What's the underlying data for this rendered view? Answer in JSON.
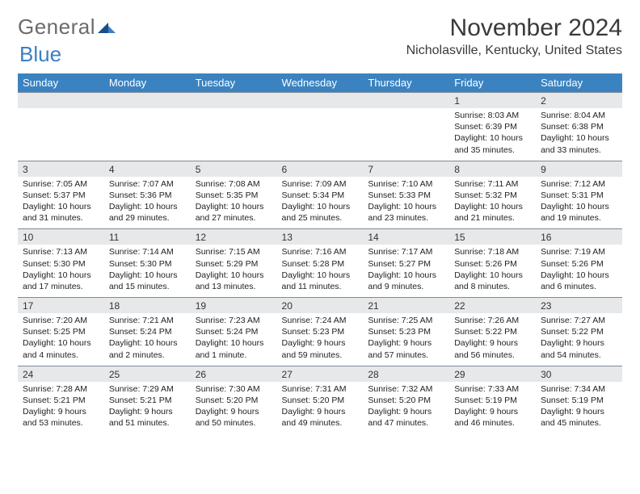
{
  "brand": {
    "part1": "General",
    "part2": "Blue"
  },
  "title": "November 2024",
  "location": "Nicholasville, Kentucky, United States",
  "colors": {
    "header_bg": "#3b83c0",
    "header_text": "#ffffff",
    "numrow_bg": "#e7e8e9",
    "numrow_border": "#7f8b97",
    "body_text": "#222222",
    "logo_gray": "#6b6b6b",
    "logo_blue": "#3b7fc4"
  },
  "weekdays": [
    "Sunday",
    "Monday",
    "Tuesday",
    "Wednesday",
    "Thursday",
    "Friday",
    "Saturday"
  ],
  "weeks": [
    [
      null,
      null,
      null,
      null,
      null,
      {
        "n": "1",
        "sr": "8:03 AM",
        "ss": "6:39 PM",
        "dl": "10 hours and 35 minutes."
      },
      {
        "n": "2",
        "sr": "8:04 AM",
        "ss": "6:38 PM",
        "dl": "10 hours and 33 minutes."
      }
    ],
    [
      {
        "n": "3",
        "sr": "7:05 AM",
        "ss": "5:37 PM",
        "dl": "10 hours and 31 minutes."
      },
      {
        "n": "4",
        "sr": "7:07 AM",
        "ss": "5:36 PM",
        "dl": "10 hours and 29 minutes."
      },
      {
        "n": "5",
        "sr": "7:08 AM",
        "ss": "5:35 PM",
        "dl": "10 hours and 27 minutes."
      },
      {
        "n": "6",
        "sr": "7:09 AM",
        "ss": "5:34 PM",
        "dl": "10 hours and 25 minutes."
      },
      {
        "n": "7",
        "sr": "7:10 AM",
        "ss": "5:33 PM",
        "dl": "10 hours and 23 minutes."
      },
      {
        "n": "8",
        "sr": "7:11 AM",
        "ss": "5:32 PM",
        "dl": "10 hours and 21 minutes."
      },
      {
        "n": "9",
        "sr": "7:12 AM",
        "ss": "5:31 PM",
        "dl": "10 hours and 19 minutes."
      }
    ],
    [
      {
        "n": "10",
        "sr": "7:13 AM",
        "ss": "5:30 PM",
        "dl": "10 hours and 17 minutes."
      },
      {
        "n": "11",
        "sr": "7:14 AM",
        "ss": "5:30 PM",
        "dl": "10 hours and 15 minutes."
      },
      {
        "n": "12",
        "sr": "7:15 AM",
        "ss": "5:29 PM",
        "dl": "10 hours and 13 minutes."
      },
      {
        "n": "13",
        "sr": "7:16 AM",
        "ss": "5:28 PM",
        "dl": "10 hours and 11 minutes."
      },
      {
        "n": "14",
        "sr": "7:17 AM",
        "ss": "5:27 PM",
        "dl": "10 hours and 9 minutes."
      },
      {
        "n": "15",
        "sr": "7:18 AM",
        "ss": "5:26 PM",
        "dl": "10 hours and 8 minutes."
      },
      {
        "n": "16",
        "sr": "7:19 AM",
        "ss": "5:26 PM",
        "dl": "10 hours and 6 minutes."
      }
    ],
    [
      {
        "n": "17",
        "sr": "7:20 AM",
        "ss": "5:25 PM",
        "dl": "10 hours and 4 minutes."
      },
      {
        "n": "18",
        "sr": "7:21 AM",
        "ss": "5:24 PM",
        "dl": "10 hours and 2 minutes."
      },
      {
        "n": "19",
        "sr": "7:23 AM",
        "ss": "5:24 PM",
        "dl": "10 hours and 1 minute."
      },
      {
        "n": "20",
        "sr": "7:24 AM",
        "ss": "5:23 PM",
        "dl": "9 hours and 59 minutes."
      },
      {
        "n": "21",
        "sr": "7:25 AM",
        "ss": "5:23 PM",
        "dl": "9 hours and 57 minutes."
      },
      {
        "n": "22",
        "sr": "7:26 AM",
        "ss": "5:22 PM",
        "dl": "9 hours and 56 minutes."
      },
      {
        "n": "23",
        "sr": "7:27 AM",
        "ss": "5:22 PM",
        "dl": "9 hours and 54 minutes."
      }
    ],
    [
      {
        "n": "24",
        "sr": "7:28 AM",
        "ss": "5:21 PM",
        "dl": "9 hours and 53 minutes."
      },
      {
        "n": "25",
        "sr": "7:29 AM",
        "ss": "5:21 PM",
        "dl": "9 hours and 51 minutes."
      },
      {
        "n": "26",
        "sr": "7:30 AM",
        "ss": "5:20 PM",
        "dl": "9 hours and 50 minutes."
      },
      {
        "n": "27",
        "sr": "7:31 AM",
        "ss": "5:20 PM",
        "dl": "9 hours and 49 minutes."
      },
      {
        "n": "28",
        "sr": "7:32 AM",
        "ss": "5:20 PM",
        "dl": "9 hours and 47 minutes."
      },
      {
        "n": "29",
        "sr": "7:33 AM",
        "ss": "5:19 PM",
        "dl": "9 hours and 46 minutes."
      },
      {
        "n": "30",
        "sr": "7:34 AM",
        "ss": "5:19 PM",
        "dl": "9 hours and 45 minutes."
      }
    ]
  ],
  "labels": {
    "sunrise": "Sunrise: ",
    "sunset": "Sunset: ",
    "daylight": "Daylight: "
  }
}
